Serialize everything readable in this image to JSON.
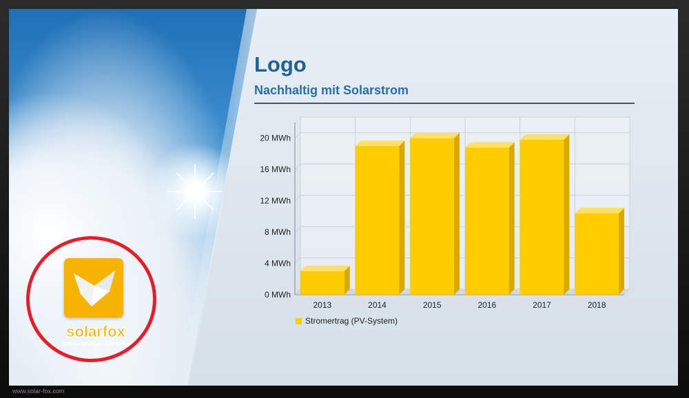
{
  "title": "Logo",
  "subtitle": "Nachhaltig mit Solarstrom",
  "logo": {
    "brand": "solarfox",
    "tagline": "SOLAR DISPLAY SYSTEMS"
  },
  "watermark": "www.solar-fox.com",
  "colors": {
    "bar": "#ffcc00",
    "bar_side": "#d9a900",
    "bar_top": "#ffe066",
    "title": "#1e6294",
    "ring": "#e2202b"
  },
  "chart_data": {
    "type": "bar",
    "categories": [
      "2013",
      "2014",
      "2015",
      "2016",
      "2017",
      "2018"
    ],
    "series": [
      {
        "name": "Stromertrag (PV-System)",
        "values": [
          3,
          19,
          20,
          18.8,
          19.8,
          10.4
        ]
      }
    ],
    "yticks": [
      "0 MWh",
      "4 MWh",
      "8 MWh",
      "12 MWh",
      "16 MWh",
      "20 MWh"
    ],
    "ylim": [
      0,
      22
    ],
    "unit": "MWh",
    "grid": true,
    "legend_position": "bottom-left"
  }
}
